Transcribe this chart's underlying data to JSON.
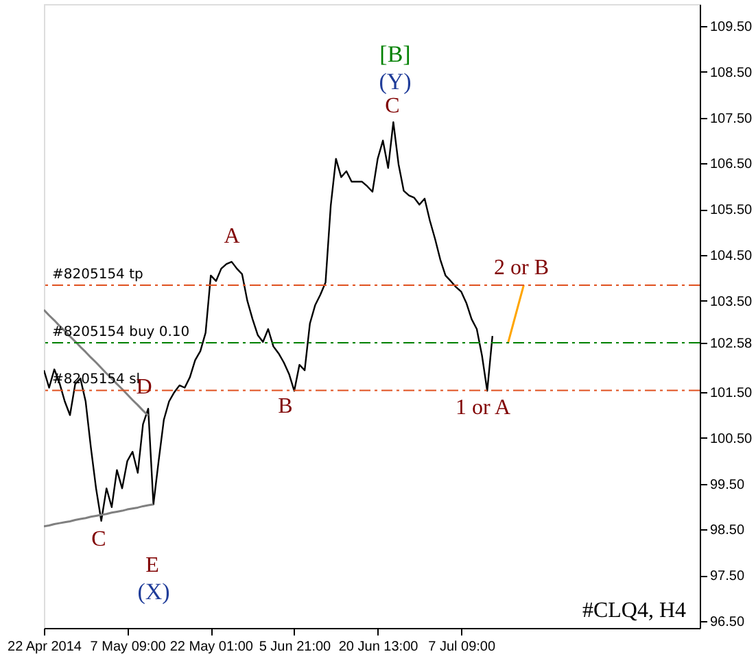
{
  "chart_data": {
    "type": "line",
    "categories": [
      "22 Apr 2014",
      null,
      null,
      null,
      null,
      null,
      null,
      null,
      null,
      null,
      null,
      null,
      null,
      null,
      null,
      null,
      "7 May 09:00",
      null,
      null,
      null,
      null,
      null,
      null,
      null,
      null,
      null,
      null,
      null,
      null,
      null,
      null,
      null,
      "22 May 01:00",
      null,
      null,
      null,
      null,
      null,
      null,
      null,
      null,
      null,
      null,
      null,
      null,
      null,
      null,
      null,
      "5 Jun 21:00",
      null,
      null,
      null,
      null,
      null,
      null,
      null,
      null,
      null,
      null,
      null,
      null,
      null,
      null,
      null,
      "20 Jun 13:00",
      null,
      null,
      null,
      null,
      null,
      null,
      null,
      null,
      null,
      null,
      null,
      null,
      null,
      null,
      null,
      "7 Jul 09:00",
      null,
      null,
      null,
      null,
      null,
      null,
      null,
      null,
      null,
      null,
      null,
      null,
      null,
      null,
      null,
      null,
      null,
      null,
      null,
      null,
      null,
      null,
      null,
      null,
      null,
      null,
      null,
      null,
      null,
      null,
      null,
      null,
      null,
      null,
      null,
      null,
      null,
      null,
      null,
      null,
      null,
      null,
      null,
      null,
      null
    ],
    "ylim": [
      96.35,
      109.98
    ],
    "yticks": [
      {
        "value": 96.5,
        "label": "96.50"
      },
      {
        "value": 97.5,
        "label": "97.50"
      },
      {
        "value": 98.5,
        "label": "98.50"
      },
      {
        "value": 99.5,
        "label": "99.50"
      },
      {
        "value": 100.5,
        "label": "100.50"
      },
      {
        "value": 101.5,
        "label": "101.50"
      },
      102.58,
      {
        "value": 103.5,
        "label": "103.50"
      },
      {
        "value": 104.5,
        "label": "104.50"
      },
      {
        "value": 105.5,
        "label": "105.50"
      },
      {
        "value": 106.5,
        "label": "106.50"
      },
      {
        "value": 107.5,
        "label": "107.50"
      },
      {
        "value": 108.5,
        "label": "108.50"
      },
      {
        "value": 109.5,
        "label": "109.50"
      }
    ],
    "grid": false,
    "line_style": "solid",
    "series": [
      {
        "color": "#000000",
        "values": [
          101.98,
          101.6,
          102.0,
          101.7,
          101.3,
          101.0,
          101.68,
          101.8,
          101.3,
          100.3,
          99.4,
          98.69,
          99.4,
          98.99,
          99.8,
          99.4,
          100.0,
          100.2,
          99.74,
          100.8,
          101.14,
          99.05,
          100.0,
          100.9,
          101.3,
          101.5,
          101.65,
          101.6,
          101.83,
          102.2,
          102.4,
          102.8,
          104.05,
          103.93,
          104.2,
          104.3,
          104.35,
          104.2,
          104.08,
          103.5,
          103.1,
          102.75,
          102.6,
          102.88,
          102.5,
          102.35,
          102.15,
          101.9,
          101.53,
          102.1,
          101.98,
          103.0,
          103.4,
          103.63,
          103.9,
          105.58,
          106.6,
          106.2,
          106.33,
          106.1,
          106.1,
          106.1,
          106.0,
          105.88,
          106.6,
          107.0,
          106.4,
          107.4,
          106.48,
          105.9,
          105.8,
          105.75,
          105.6,
          105.73,
          105.25,
          104.85,
          104.4,
          104.05,
          103.93,
          103.8,
          103.7,
          103.45,
          103.1,
          102.88,
          102.3,
          101.53,
          102.73,
          null,
          null,
          null,
          null,
          null,
          null,
          null,
          null,
          null,
          null,
          null,
          null,
          null,
          null,
          null,
          null,
          null,
          null,
          null,
          null,
          null,
          null,
          null,
          null,
          null,
          null,
          null,
          null,
          null,
          null,
          null,
          null,
          null,
          null,
          null,
          null,
          null,
          null,
          null
        ]
      },
      {
        "color": "#808080",
        "values": [
          103.3,
          103.18,
          103.07,
          102.95,
          102.84,
          102.72,
          102.61,
          102.49,
          102.38,
          102.26,
          102.15,
          102.03,
          101.91,
          101.8,
          101.68,
          101.57,
          101.45,
          101.33,
          101.22,
          101.1,
          100.99,
          null,
          null,
          null,
          null,
          null,
          null,
          null,
          null,
          null,
          null,
          null,
          null,
          null,
          null,
          null,
          null,
          null,
          null,
          null,
          null,
          null,
          null,
          null,
          null,
          null,
          null,
          null,
          null,
          null,
          null,
          null,
          null,
          null,
          null,
          null,
          null,
          null,
          null,
          null,
          null,
          null,
          null,
          null,
          null,
          null,
          null,
          null,
          null,
          null,
          null,
          null,
          null,
          null,
          null,
          null,
          null,
          null,
          null,
          null,
          null,
          null,
          null,
          null,
          null,
          null,
          null,
          null,
          null,
          null,
          null,
          null,
          null,
          null,
          null,
          null,
          null,
          null,
          null,
          null,
          null,
          null,
          null,
          null,
          null,
          null,
          null,
          null,
          null,
          null,
          null,
          null,
          null,
          null,
          null,
          null,
          null,
          null,
          null,
          null,
          null,
          null,
          null,
          null,
          null,
          null
        ]
      },
      {
        "color": "#808080",
        "values": [
          98.57,
          98.59,
          98.62,
          98.64,
          98.66,
          98.68,
          98.71,
          98.73,
          98.75,
          98.78,
          98.8,
          98.82,
          98.84,
          98.87,
          98.89,
          98.91,
          98.94,
          98.96,
          98.98,
          99.01,
          99.03,
          99.05,
          null,
          null,
          null,
          null,
          null,
          null,
          null,
          null,
          null,
          null,
          null,
          null,
          null,
          null,
          null,
          null,
          null,
          null,
          null,
          null,
          null,
          null,
          null,
          null,
          null,
          null,
          null,
          null,
          null,
          null,
          null,
          null,
          null,
          null,
          null,
          null,
          null,
          null,
          null,
          null,
          null,
          null,
          null,
          null,
          null,
          null,
          null,
          null,
          null,
          null,
          null,
          null,
          null,
          null,
          null,
          null,
          null,
          null,
          null,
          null,
          null,
          null,
          null,
          null,
          null,
          null,
          null,
          null,
          null,
          null,
          null,
          null,
          null,
          null,
          null,
          null,
          null,
          null,
          null,
          null,
          null,
          null,
          null,
          null,
          null,
          null,
          null,
          null,
          null,
          null,
          null,
          null,
          null,
          null,
          null,
          null,
          null,
          null,
          null,
          null,
          null,
          null,
          null,
          null
        ]
      },
      {
        "color": "#ffa500",
        "values": [
          null,
          null,
          null,
          null,
          null,
          null,
          null,
          null,
          null,
          null,
          null,
          null,
          null,
          null,
          null,
          null,
          null,
          null,
          null,
          null,
          null,
          null,
          null,
          null,
          null,
          null,
          null,
          null,
          null,
          null,
          null,
          null,
          null,
          null,
          null,
          null,
          null,
          null,
          null,
          null,
          null,
          null,
          null,
          null,
          null,
          null,
          null,
          null,
          null,
          null,
          null,
          null,
          null,
          null,
          null,
          null,
          null,
          null,
          null,
          null,
          null,
          null,
          null,
          null,
          null,
          null,
          null,
          null,
          null,
          null,
          null,
          null,
          null,
          null,
          null,
          null,
          null,
          null,
          null,
          null,
          null,
          null,
          null,
          null,
          null,
          null,
          null,
          null,
          null,
          102.58,
          103.0,
          103.42,
          103.84,
          null,
          null,
          null,
          null,
          null,
          null,
          null,
          null,
          null,
          null,
          null,
          null,
          null,
          null,
          null,
          null,
          null,
          null,
          null,
          null,
          null,
          null,
          null,
          null,
          null,
          null,
          null,
          null,
          null,
          null,
          null,
          null,
          null
        ]
      }
    ],
    "ref_lines": [
      {
        "axis": "y",
        "value": 103.84,
        "label": "#8205154 tp",
        "color": "#e0501e",
        "line_style": "dashed"
      },
      {
        "axis": "y",
        "value": 102.58,
        "label": "#8205154 buy 0.10",
        "color": "#008000",
        "line_style": "dashed"
      },
      {
        "axis": "y",
        "value": 101.54,
        "label": "#8205154 sl",
        "color": "#e0501e",
        "line_style": "dashed"
      }
    ],
    "annotations": [
      "[B]",
      "(Y)",
      "C",
      "A",
      "B",
      "D",
      "C",
      "E",
      "(X)",
      "2 or B",
      "1 or A",
      "#CLQ4, H4"
    ]
  }
}
